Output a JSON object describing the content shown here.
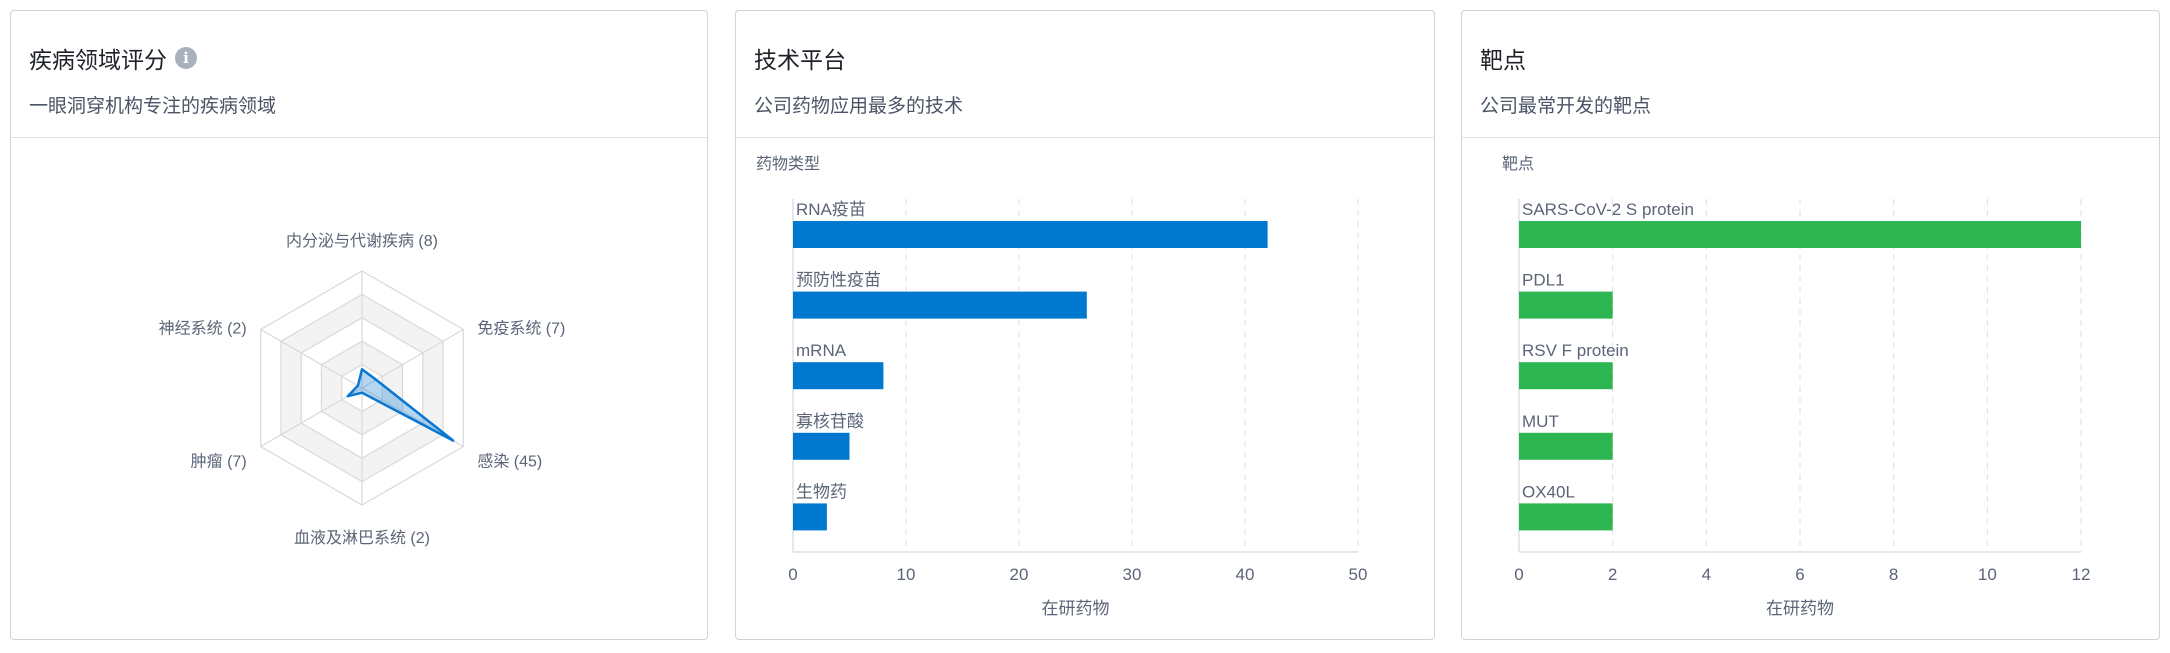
{
  "panels": [
    {
      "title": "疾病领域评分",
      "subtitle": "一眼洞穿机构专注的疾病领域",
      "info_icon": "info-icon"
    },
    {
      "title": "技术平台",
      "subtitle": "公司药物应用最多的技术"
    },
    {
      "title": "靶点",
      "subtitle": "公司最常开发的靶点"
    }
  ],
  "chart_data": [
    {
      "type": "radar",
      "categories": [
        "内分泌与代谢疾病",
        "免疫系统",
        "感染",
        "血液及淋巴系统",
        "肿瘤",
        "神经系统"
      ],
      "values": [
        8,
        7,
        45,
        2,
        7,
        2
      ],
      "labels": [
        "内分泌与代谢疾病 (8)",
        "免疫系统 (7)",
        "感染 (45)",
        "血液及淋巴系统 (2)",
        "肿瘤 (7)",
        "神经系统 (2)"
      ],
      "rmax": 50,
      "rings": 5,
      "color": "#0a78d2"
    },
    {
      "type": "bar",
      "orientation": "horizontal",
      "ylabel": "药物类型",
      "xlabel": "在研药物",
      "categories": [
        "RNA疫苗",
        "预防性疫苗",
        "mRNA",
        "寡核苷酸",
        "生物药"
      ],
      "values": [
        42,
        26,
        8,
        5,
        3
      ],
      "xlim": [
        0,
        50
      ],
      "xticks": [
        "0",
        "10",
        "20",
        "30",
        "40",
        "50"
      ],
      "grid": true,
      "color": "#0078d0"
    },
    {
      "type": "bar",
      "orientation": "horizontal",
      "ylabel": "靶点",
      "xlabel": "在研药物",
      "categories": [
        "SARS-CoV-2 S protein",
        "PDL1",
        "RSV F protein",
        "MUT",
        "OX40L"
      ],
      "values": [
        12,
        2,
        2,
        2,
        2
      ],
      "xlim": [
        0,
        12
      ],
      "xticks": [
        "0",
        "2",
        "4",
        "6",
        "8",
        "10",
        "12"
      ],
      "grid": true,
      "color": "#2db552"
    }
  ]
}
